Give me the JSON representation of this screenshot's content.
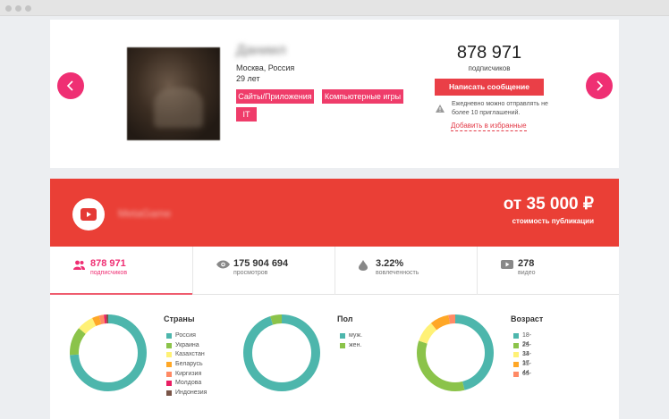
{
  "profile": {
    "name": "Даниил",
    "city": "Москва, Россия",
    "age": "29 лет",
    "tags": [
      "Сайты/Приложения",
      "Компьютерные игры",
      "IT"
    ],
    "subscribers_count": "878 971",
    "subscribers_label": "подписчиков",
    "message_button": "Написать сообщение",
    "invite_note": "Ежедневно можно отправлять не более 10 приглашений.",
    "favorite_link": "Добавить в избранные",
    "nav_prev_icon": "chevron-left-icon",
    "nav_next_icon": "chevron-right-icon"
  },
  "channel": {
    "platform_icon": "youtube-icon",
    "name": "MetaGame",
    "price": "от 35 000 ₽",
    "price_label": "стоимость публикации",
    "accent_color": "#ea3f36"
  },
  "stats": [
    {
      "icon": "users-icon",
      "value": "878 971",
      "label": "подписчиков",
      "active": true
    },
    {
      "icon": "eye-icon",
      "value": "175 904 694",
      "label": "просмотров",
      "active": false
    },
    {
      "icon": "drop-icon",
      "value": "3.22%",
      "label": "вовлеченность",
      "active": false
    },
    {
      "icon": "video-icon",
      "value": "278",
      "label": "видео",
      "active": false
    }
  ],
  "chart_data": [
    {
      "type": "pie",
      "title": "Страны",
      "categories": [
        "Россия",
        "Украина",
        "Казахстан",
        "Беларусь",
        "Киргизия",
        "Молдова",
        "Индонезия"
      ],
      "values": [
        74,
        12,
        7,
        3,
        2,
        1,
        1
      ],
      "colors": [
        "#4db6ac",
        "#8bc34a",
        "#fff176",
        "#ffa726",
        "#ff8a65",
        "#e91e63",
        "#795548"
      ]
    },
    {
      "type": "pie",
      "title": "Пол",
      "categories": [
        "муж.",
        "жен."
      ],
      "values": [
        95,
        5
      ],
      "colors": [
        "#4db6ac",
        "#8bc34a"
      ]
    },
    {
      "type": "pie",
      "title": "Возраст",
      "categories": [
        "18-24",
        "25-34",
        "13-17",
        "35-44",
        "65-"
      ],
      "values": [
        46,
        34,
        9,
        8,
        3
      ],
      "colors": [
        "#4db6ac",
        "#8bc34a",
        "#fff176",
        "#ffa726",
        "#ff8a65"
      ]
    }
  ]
}
